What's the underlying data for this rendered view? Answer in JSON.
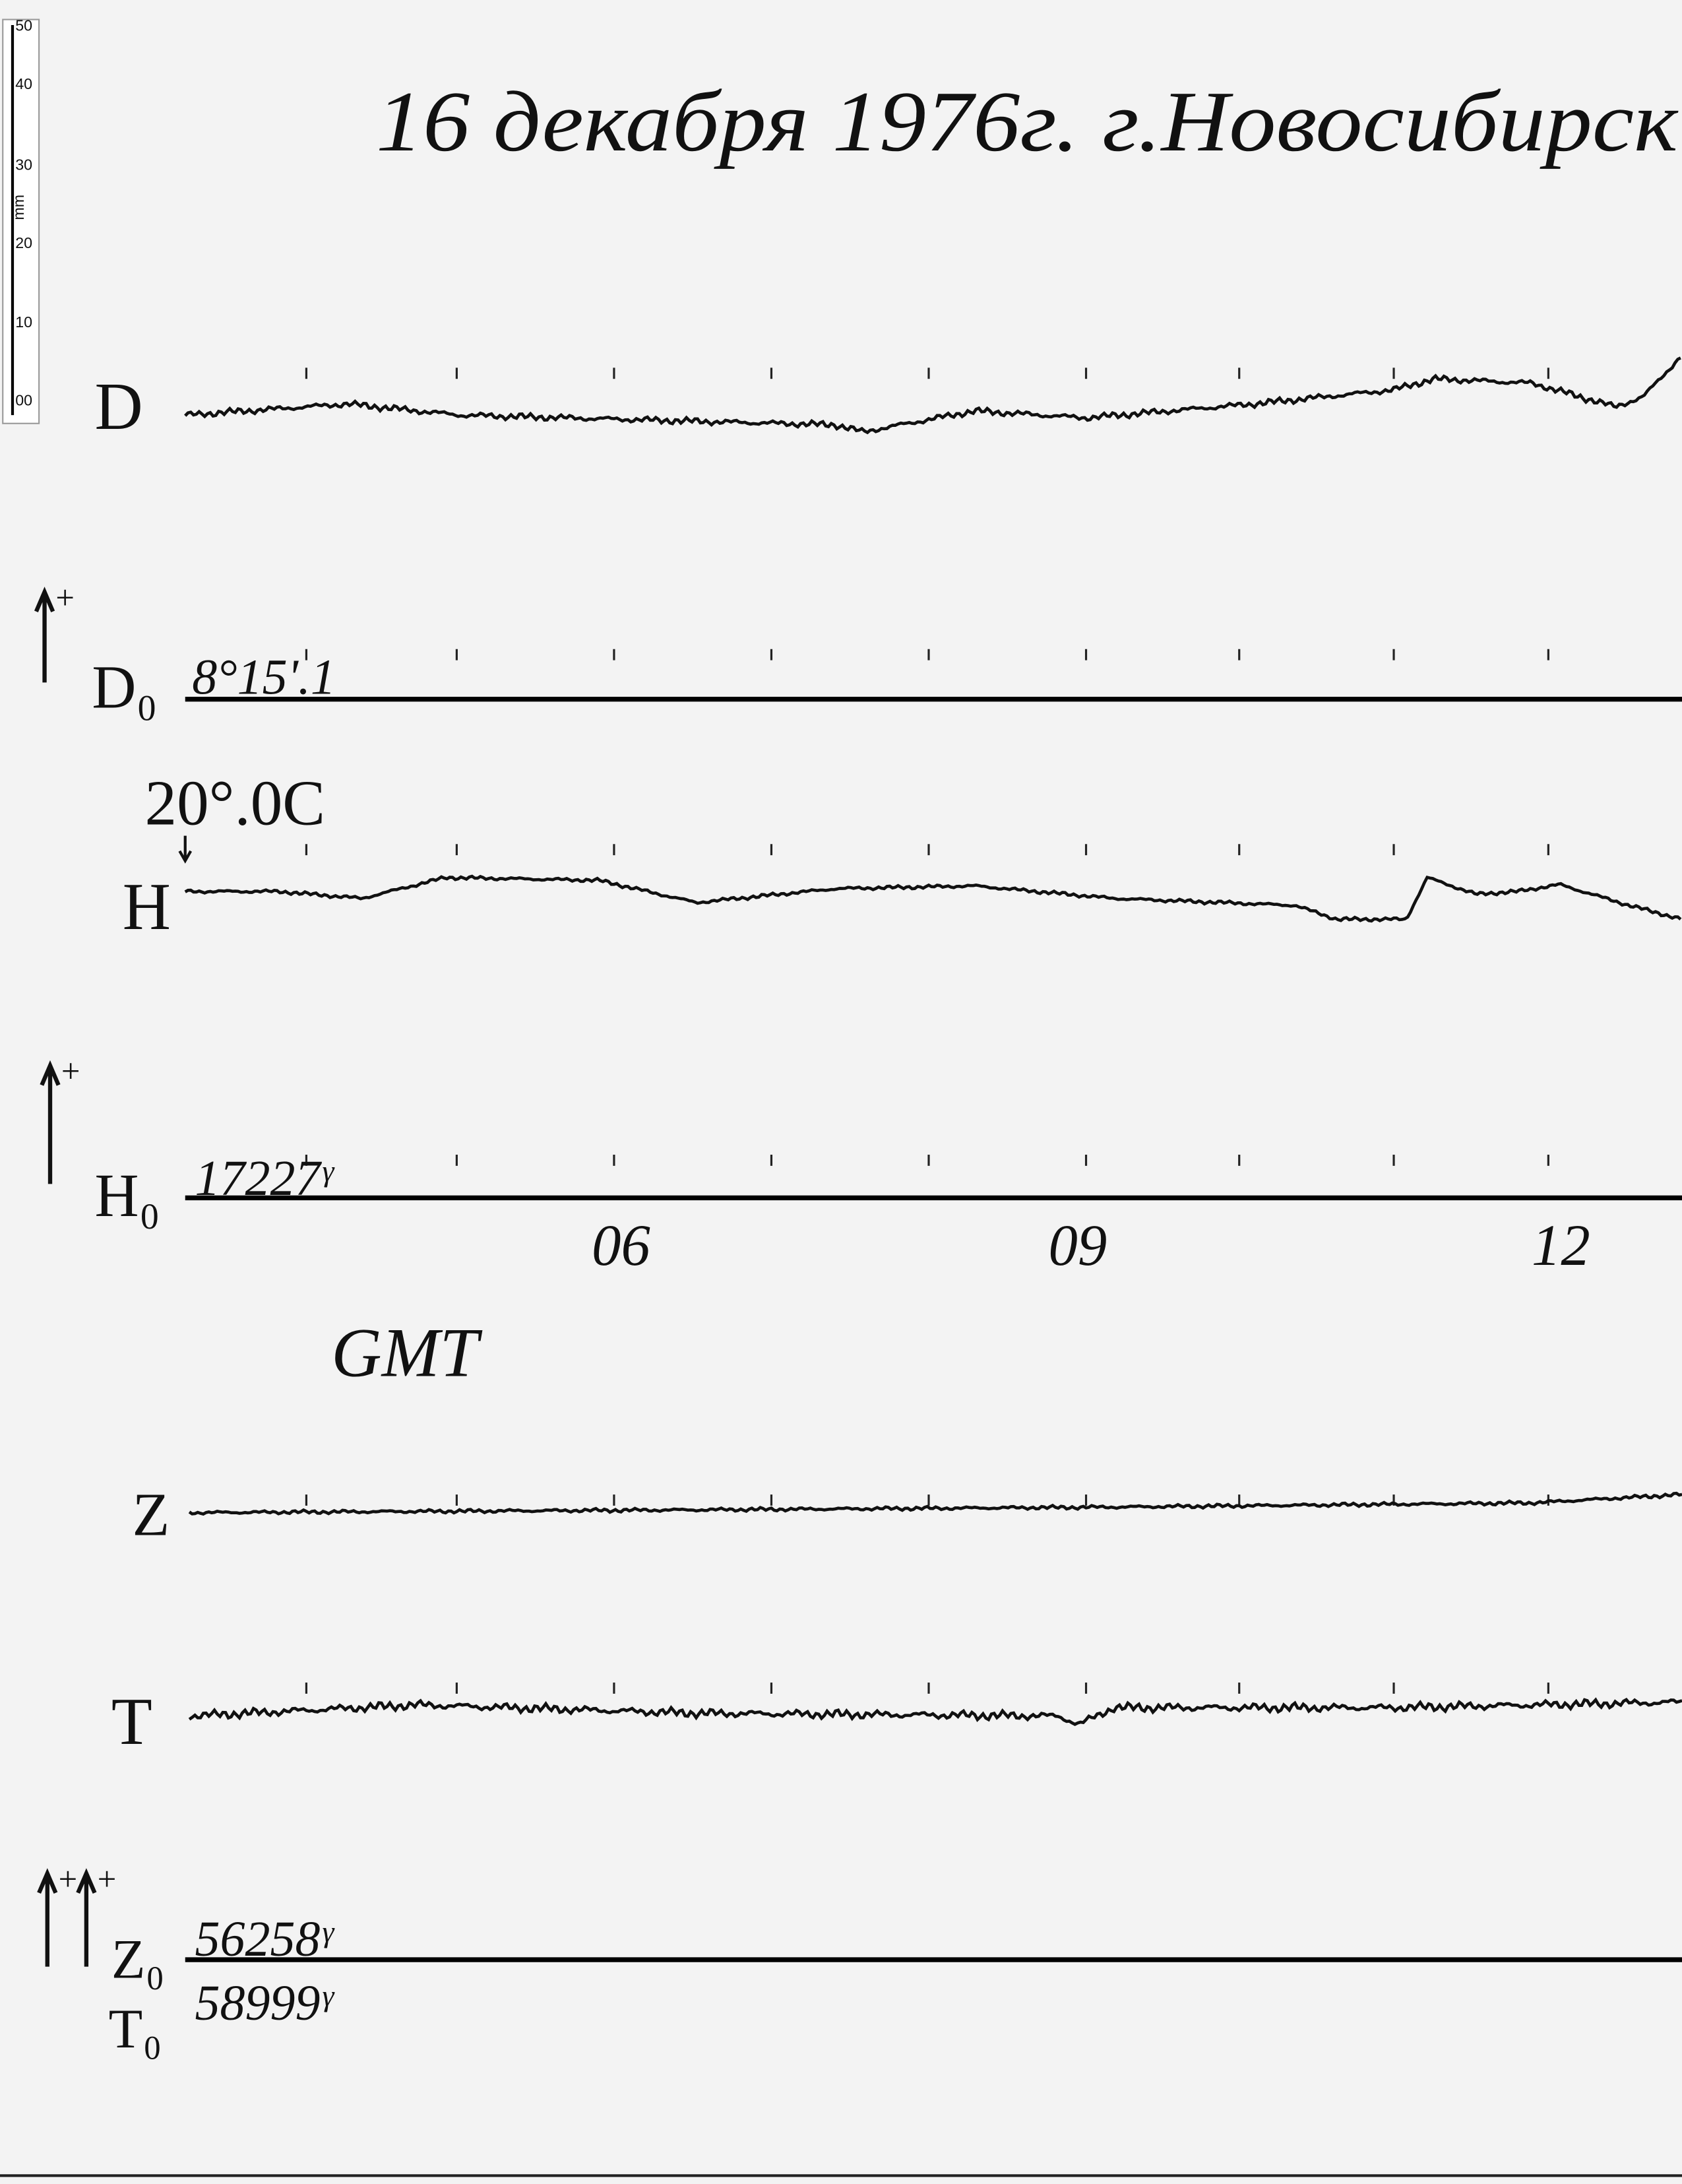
{
  "ruler": {
    "labels": [
      "50",
      "40",
      "30",
      "20",
      "10",
      "00"
    ],
    "unit": "mm"
  },
  "header": {
    "title": "16 декабря  1976г.   г.Новосибирск"
  },
  "traces": [
    {
      "label": "D"
    },
    {
      "label": "H"
    },
    {
      "label": "Z"
    },
    {
      "label": "T"
    }
  ],
  "arrow_sign": "+",
  "temperature": "20°.0C",
  "baselines": [
    {
      "label": "D₀",
      "value": "8°15'.1"
    },
    {
      "label": "H₀",
      "value": "17227ᵞ"
    },
    {
      "label": "Z₀",
      "value": "56258ᵞ"
    },
    {
      "label": "T₀",
      "value": "58999ᵞ"
    }
  ],
  "time_axis": {
    "labels": [
      "06",
      "09",
      "12"
    ],
    "unit": "GMT"
  }
}
